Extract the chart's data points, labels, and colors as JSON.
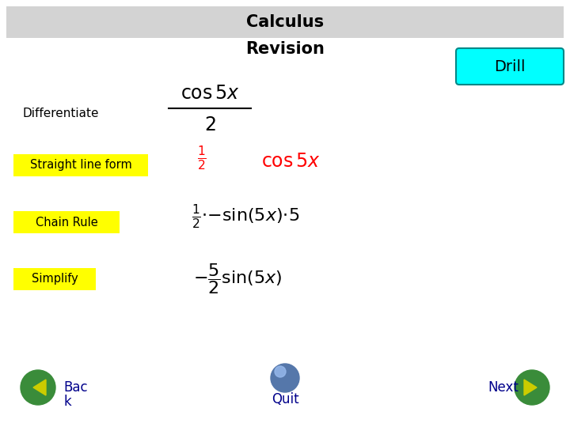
{
  "title_line1": "Calculus",
  "title_line2": "Revision",
  "title_bg_color": "#d3d3d3",
  "background_color": "#ffffff",
  "drill_text": "Drill",
  "drill_bg_color": "#00ffff",
  "drill_edge_color": "#008888",
  "differentiate_label": "Differentiate",
  "slf_label": "Straight line form",
  "slf_bg": "#ffff00",
  "cr_label": "Chain Rule",
  "cr_bg": "#ffff00",
  "simp_label": "Simplify",
  "simp_bg": "#ffff00",
  "back_text1": "Bac",
  "back_text2": "k",
  "quit_text": "Quit",
  "next_text": "Next",
  "nav_green": "#3a8c3a",
  "nav_text_color": "#00008b",
  "figsize": [
    7.2,
    5.4
  ],
  "dpi": 100
}
